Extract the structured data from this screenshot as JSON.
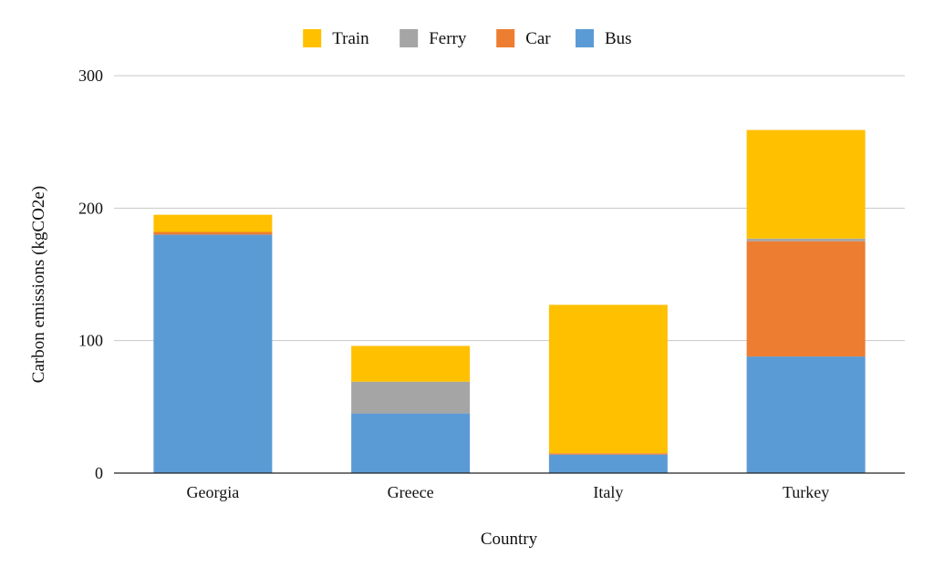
{
  "chart_data": {
    "type": "bar",
    "stacked": true,
    "title": "",
    "xlabel": "Country",
    "ylabel": "Carbon emissions (kgCO2e)",
    "ylim": [
      0,
      300
    ],
    "yticks": [
      0,
      100,
      200,
      300
    ],
    "grid": true,
    "legend_position": "top",
    "categories": [
      "Georgia",
      "Greece",
      "Italy",
      "Turkey"
    ],
    "series": [
      {
        "name": "Bus",
        "color": "#5B9BD5",
        "values": [
          180,
          45,
          14,
          88
        ]
      },
      {
        "name": "Car",
        "color": "#ED7D31",
        "values": [
          2,
          0,
          1,
          87
        ]
      },
      {
        "name": "Ferry",
        "color": "#A5A5A5",
        "values": [
          0,
          24,
          0,
          2
        ]
      },
      {
        "name": "Train",
        "color": "#FFC000",
        "values": [
          13,
          27,
          112,
          82
        ]
      }
    ],
    "legend_order": [
      "Train",
      "Ferry",
      "Car",
      "Bus"
    ]
  }
}
